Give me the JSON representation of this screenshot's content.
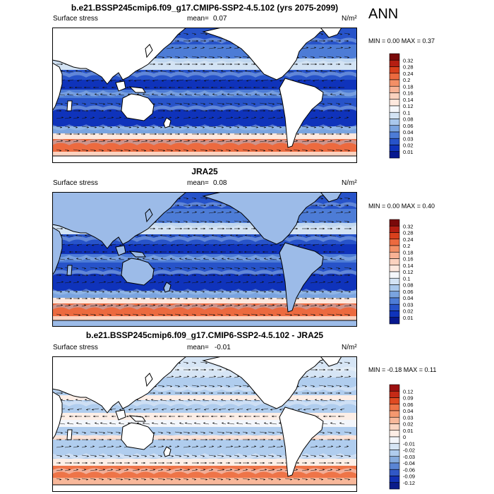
{
  "season_label": "ANN",
  "panels": [
    {
      "title": "b.e21.BSSP245cmip6.f09_g17.CMIP6-SSP2-4.5.102 (yrs 2075-2099)",
      "left_label": "Surface stress",
      "mean_label": "mean=",
      "mean_value": "0.07",
      "units": "N/m²",
      "minmax": "MIN =  0.00 MAX =  0.37",
      "colorbar": {
        "ticks": [
          "0.32",
          "0.28",
          "0.24",
          "0.2",
          "0.18",
          "0.16",
          "0.14",
          "0.12",
          "0.1",
          "0.08",
          "0.06",
          "0.04",
          "0.03",
          "0.02",
          "0.01"
        ],
        "colors": [
          "#7a0a0a",
          "#b51e12",
          "#d9401d",
          "#ec6a3f",
          "#f38f66",
          "#f8b295",
          "#fbd2bf",
          "#fde8de",
          "#f5f7fb",
          "#d3e3f4",
          "#a9c8ec",
          "#7aa4e0",
          "#4d7cd6",
          "#2753c9",
          "#0f33bb",
          "#06188f"
        ]
      }
    },
    {
      "title": "JRA25",
      "left_label": "Surface stress",
      "mean_label": "mean=",
      "mean_value": "0.08",
      "units": "N/m²",
      "minmax": "MIN =  0.00 MAX =  0.40",
      "colorbar": {
        "ticks": [
          "0.32",
          "0.28",
          "0.24",
          "0.2",
          "0.18",
          "0.16",
          "0.14",
          "0.12",
          "0.1",
          "0.08",
          "0.06",
          "0.04",
          "0.03",
          "0.02",
          "0.01"
        ],
        "colors": [
          "#7a0a0a",
          "#b51e12",
          "#d9401d",
          "#ec6a3f",
          "#f38f66",
          "#f8b295",
          "#fbd2bf",
          "#fde8de",
          "#f5f7fb",
          "#d3e3f4",
          "#a9c8ec",
          "#7aa4e0",
          "#4d7cd6",
          "#2753c9",
          "#0f33bb",
          "#06188f"
        ]
      }
    },
    {
      "title": "b.e21.BSSP245cmip6.f09_g17.CMIP6-SSP2-4.5.102 - JRA25",
      "left_label": "Surface stress",
      "mean_label": "mean=",
      "mean_value": "-0.01",
      "units": "N/m²",
      "minmax": "MIN = -0.18 MAX =  0.11",
      "colorbar": {
        "ticks": [
          "0.12",
          "0.09",
          "0.06",
          "0.04",
          "0.03",
          "0.02",
          "0.01",
          "0",
          "-0.01",
          "-0.02",
          "-0.03",
          "-0.04",
          "-0.06",
          "-0.09",
          "-0.12"
        ],
        "colors": [
          "#9c1010",
          "#c52a16",
          "#e04a22",
          "#ee7448",
          "#f4986f",
          "#f8b89a",
          "#fbd6c3",
          "#fdeee6",
          "#f3f6fb",
          "#d6e5f5",
          "#b0cdee",
          "#86acdf",
          "#5a85d4",
          "#3158c6",
          "#1331b4",
          "#0b1c8a"
        ]
      }
    }
  ]
}
